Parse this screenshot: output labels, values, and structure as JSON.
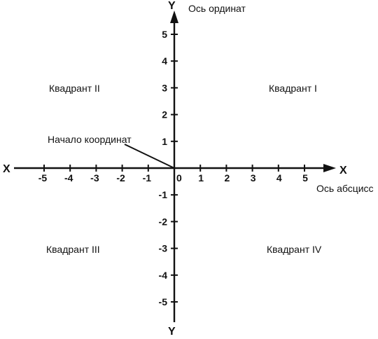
{
  "labels": {
    "x_left": "X",
    "x_right": "X",
    "y_top": "Y",
    "y_bottom": "Y",
    "y_axis_name": "Ось ординат",
    "x_axis_name": "Ось абсцисс",
    "origin": "Начало координат",
    "quadrant_1": "Квадрант I",
    "quadrant_2": "Квадрант II",
    "quadrant_3": "Квадрант III",
    "quadrant_4": "Квадрант IV",
    "zero": "0"
  },
  "x_ticks": [
    "-5",
    "-4",
    "-3",
    "-2",
    "-1",
    "1",
    "2",
    "3",
    "4",
    "5"
  ],
  "y_ticks": [
    "5",
    "4",
    "3",
    "2",
    "1",
    "-1",
    "-2",
    "-3",
    "-4",
    "-5"
  ],
  "colors": {
    "ink": "#111111",
    "background": "#ffffff"
  }
}
